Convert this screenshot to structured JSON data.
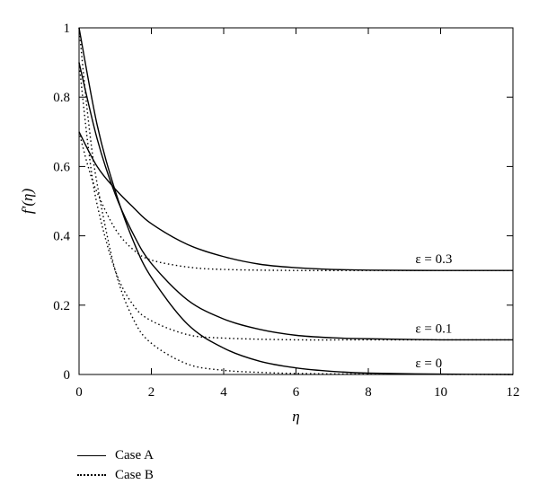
{
  "chart_data": {
    "type": "line",
    "xlabel": "η",
    "ylabel": "f′(η)",
    "xlim": [
      0,
      12
    ],
    "ylim": [
      0,
      1
    ],
    "xticks": [
      "0",
      "2",
      "4",
      "6",
      "8",
      "10",
      "12"
    ],
    "yticks": [
      "0",
      "0.2",
      "0.4",
      "0.6",
      "0.8",
      "1"
    ],
    "x_tick_values": [
      0,
      2,
      4,
      6,
      8,
      10,
      12
    ],
    "y_tick_values": [
      0,
      0.2,
      0.4,
      0.6,
      0.8,
      1
    ],
    "grid": false,
    "legend_position": "below-left",
    "legend": [
      {
        "label": "Case A",
        "style": "solid"
      },
      {
        "label": "Case B",
        "style": "dotted"
      }
    ],
    "annotations": [
      {
        "label": "ε = 0.3",
        "x": 9.3,
        "y": 0.3
      },
      {
        "label": "ε = 0.1",
        "x": 9.3,
        "y": 0.1
      },
      {
        "label": "ε = 0",
        "x": 9.3,
        "y": 0.0
      }
    ],
    "series": [
      {
        "case": "A",
        "epsilon": 0.3,
        "style": "solid",
        "x": [
          0,
          0.5,
          1,
          1.5,
          2,
          3,
          4,
          5,
          6,
          7,
          8,
          10,
          12
        ],
        "y": [
          0.7,
          0.6,
          0.535,
          0.482,
          0.435,
          0.375,
          0.34,
          0.318,
          0.308,
          0.303,
          0.301,
          0.3,
          0.3
        ]
      },
      {
        "case": "A",
        "epsilon": 0.1,
        "style": "solid",
        "x": [
          0,
          0.5,
          1,
          1.5,
          2,
          3,
          4,
          5,
          6,
          7,
          8,
          10,
          12
        ],
        "y": [
          0.9,
          0.68,
          0.52,
          0.405,
          0.32,
          0.215,
          0.16,
          0.13,
          0.113,
          0.106,
          0.103,
          0.1,
          0.1
        ]
      },
      {
        "case": "A",
        "epsilon": 0,
        "style": "solid",
        "x": [
          0,
          0.5,
          1,
          1.5,
          2,
          3,
          4,
          5,
          6,
          7,
          8,
          10,
          12
        ],
        "y": [
          1.0,
          0.72,
          0.53,
          0.385,
          0.28,
          0.145,
          0.076,
          0.038,
          0.019,
          0.009,
          0.004,
          0.001,
          0
        ]
      },
      {
        "case": "B",
        "epsilon": 0.3,
        "style": "dotted",
        "x": [
          0,
          0.25,
          0.5,
          1,
          1.5,
          2,
          3,
          4,
          6,
          8,
          12
        ],
        "y": [
          0.7,
          0.6,
          0.525,
          0.42,
          0.36,
          0.33,
          0.31,
          0.303,
          0.3,
          0.3,
          0.3
        ]
      },
      {
        "case": "B",
        "epsilon": 0.1,
        "style": "dotted",
        "x": [
          0,
          0.25,
          0.5,
          1,
          1.5,
          2,
          3,
          4,
          6,
          8,
          12
        ],
        "y": [
          0.9,
          0.66,
          0.49,
          0.3,
          0.2,
          0.155,
          0.115,
          0.105,
          0.1,
          0.1,
          0.1
        ]
      },
      {
        "case": "B",
        "epsilon": 0,
        "style": "dotted",
        "x": [
          0,
          0.25,
          0.5,
          1,
          1.5,
          2,
          3,
          4,
          5,
          6,
          8,
          12
        ],
        "y": [
          1.0,
          0.74,
          0.55,
          0.3,
          0.16,
          0.09,
          0.03,
          0.012,
          0.006,
          0.003,
          0.001,
          0
        ]
      }
    ]
  }
}
